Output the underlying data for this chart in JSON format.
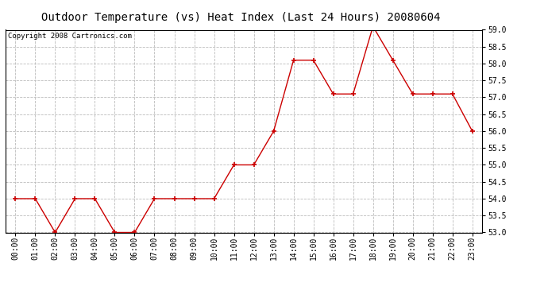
{
  "title": "Outdoor Temperature (vs) Heat Index (Last 24 Hours) 20080604",
  "copyright_text": "Copyright 2008 Cartronics.com",
  "hours": [
    "00:00",
    "01:00",
    "02:00",
    "03:00",
    "04:00",
    "05:00",
    "06:00",
    "07:00",
    "08:00",
    "09:00",
    "10:00",
    "11:00",
    "12:00",
    "13:00",
    "14:00",
    "15:00",
    "16:00",
    "17:00",
    "18:00",
    "19:00",
    "20:00",
    "21:00",
    "22:00",
    "23:00"
  ],
  "values": [
    54.0,
    54.0,
    53.0,
    54.0,
    54.0,
    53.0,
    53.0,
    54.0,
    54.0,
    54.0,
    54.0,
    55.0,
    55.0,
    56.0,
    58.1,
    58.1,
    57.1,
    57.1,
    59.1,
    58.1,
    57.1,
    57.1,
    57.1,
    56.0
  ],
  "ylim": [
    53.0,
    59.0
  ],
  "yticks": [
    53.0,
    53.5,
    54.0,
    54.5,
    55.0,
    55.5,
    56.0,
    56.5,
    57.0,
    57.5,
    58.0,
    58.5,
    59.0
  ],
  "line_color": "#cc0000",
  "marker_color": "#cc0000",
  "bg_color": "#ffffff",
  "plot_bg_color": "#ffffff",
  "grid_color": "#bbbbbb",
  "title_fontsize": 10,
  "copyright_fontsize": 6.5,
  "tick_fontsize": 7
}
